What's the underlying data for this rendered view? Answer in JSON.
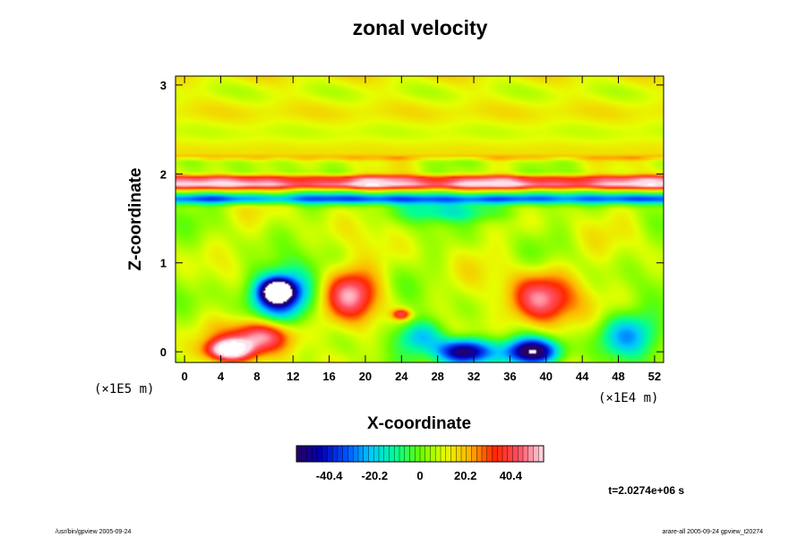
{
  "chart_data": {
    "type": "heatmap",
    "title": "zonal velocity",
    "xlabel": "X-coordinate",
    "ylabel": "Z-coordinate",
    "x_ticks": [
      "0",
      "4",
      "8",
      "12",
      "16",
      "20",
      "24",
      "28",
      "32",
      "36",
      "40",
      "44",
      "48",
      "52"
    ],
    "y_ticks": [
      "0",
      "1",
      "2",
      "3"
    ],
    "xlim": [
      -1,
      53
    ],
    "ylim": [
      -0.12,
      3.1
    ],
    "x_scale_label": "(×1E4 m)",
    "y_scale_label": "(×1E5 m)",
    "colorbar": {
      "ticks": [
        "-40.4",
        "-20.2",
        "0",
        "20.2",
        "40.4"
      ],
      "range": [
        -55,
        55
      ],
      "colors": [
        "#2a0060",
        "#0000b4",
        "#0050ff",
        "#00c8ff",
        "#00ff96",
        "#64ff00",
        "#e6ff00",
        "#ffb400",
        "#ff2800",
        "#ff5064",
        "#ffe0ea"
      ]
    },
    "features": [
      {
        "kind": "band",
        "z": 1.88,
        "thickness": 0.05,
        "value": 48
      },
      {
        "kind": "band",
        "z": 1.95,
        "thickness": 0.04,
        "value": 30
      },
      {
        "kind": "band",
        "z": 1.72,
        "thickness": 0.06,
        "value": -42
      },
      {
        "kind": "band",
        "z": 2.18,
        "thickness": 0.03,
        "value": 12
      },
      {
        "kind": "blob",
        "x": 10.5,
        "z": 0.65,
        "rx": 3.5,
        "rz": 0.28,
        "value": -50
      },
      {
        "kind": "blob",
        "x": 10.3,
        "z": 0.68,
        "rx": 1.6,
        "rz": 0.12,
        "value": -75
      },
      {
        "kind": "blob",
        "x": 18.5,
        "z": 0.65,
        "rx": 3.0,
        "rz": 0.28,
        "value": 38
      },
      {
        "kind": "blob",
        "x": 39.5,
        "z": 0.58,
        "rx": 3.5,
        "rz": 0.3,
        "value": 40
      },
      {
        "kind": "blob",
        "x": 8.5,
        "z": 0.18,
        "rx": 3.5,
        "rz": 0.18,
        "value": 45
      },
      {
        "kind": "blob",
        "x": 5.0,
        "z": 0.02,
        "rx": 2.5,
        "rz": 0.12,
        "value": 60
      },
      {
        "kind": "blob",
        "x": 31.0,
        "z": 0.0,
        "rx": 3.0,
        "rz": 0.15,
        "value": -70
      },
      {
        "kind": "blob",
        "x": 38.5,
        "z": 0.0,
        "rx": 3.0,
        "rz": 0.15,
        "value": -70
      },
      {
        "kind": "blob",
        "x": 26.0,
        "z": 0.18,
        "rx": 2.5,
        "rz": 0.18,
        "value": -30
      },
      {
        "kind": "blob",
        "x": 49.0,
        "z": 0.2,
        "rx": 3.5,
        "rz": 0.25,
        "value": -30
      },
      {
        "kind": "blob",
        "x": 30.0,
        "z": 1.58,
        "rx": 6.0,
        "rz": 0.12,
        "value": -22
      },
      {
        "kind": "blob",
        "x": 24.0,
        "z": 0.42,
        "rx": 1.0,
        "rz": 0.06,
        "value": 35
      }
    ],
    "time_label": "t=2.0274e+06 s",
    "footer_left": "/usr/bin/gpview 2005-09-24",
    "footer_right": "arare-all 2005-09-24 gpview_t20274"
  }
}
